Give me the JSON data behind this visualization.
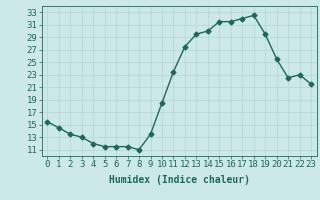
{
  "x": [
    0,
    1,
    2,
    3,
    4,
    5,
    6,
    7,
    8,
    9,
    10,
    11,
    12,
    13,
    14,
    15,
    16,
    17,
    18,
    19,
    20,
    21,
    22,
    23
  ],
  "y": [
    15.5,
    14.5,
    13.5,
    13.0,
    12.0,
    11.5,
    11.5,
    11.5,
    11.0,
    13.5,
    18.5,
    23.5,
    27.5,
    29.5,
    30.0,
    31.5,
    31.5,
    32.0,
    32.5,
    29.5,
    25.5,
    22.5,
    23.0,
    21.5
  ],
  "line_color": "#1a6b5a",
  "marker": "D",
  "markersize": 2.5,
  "linewidth": 1.0,
  "xlabel": "Humidex (Indice chaleur)",
  "xlim": [
    -0.5,
    23.5
  ],
  "ylim": [
    10,
    34
  ],
  "yticks": [
    11,
    13,
    15,
    17,
    19,
    21,
    23,
    25,
    27,
    29,
    31,
    33
  ],
  "xticks": [
    0,
    1,
    2,
    3,
    4,
    5,
    6,
    7,
    8,
    9,
    10,
    11,
    12,
    13,
    14,
    15,
    16,
    17,
    18,
    19,
    20,
    21,
    22,
    23
  ],
  "bg_color": "#cce8e8",
  "grid_color": "#b8d8d8",
  "font_color": "#1a6b5a",
  "xlabel_fontsize": 7,
  "tick_fontsize": 6.5
}
